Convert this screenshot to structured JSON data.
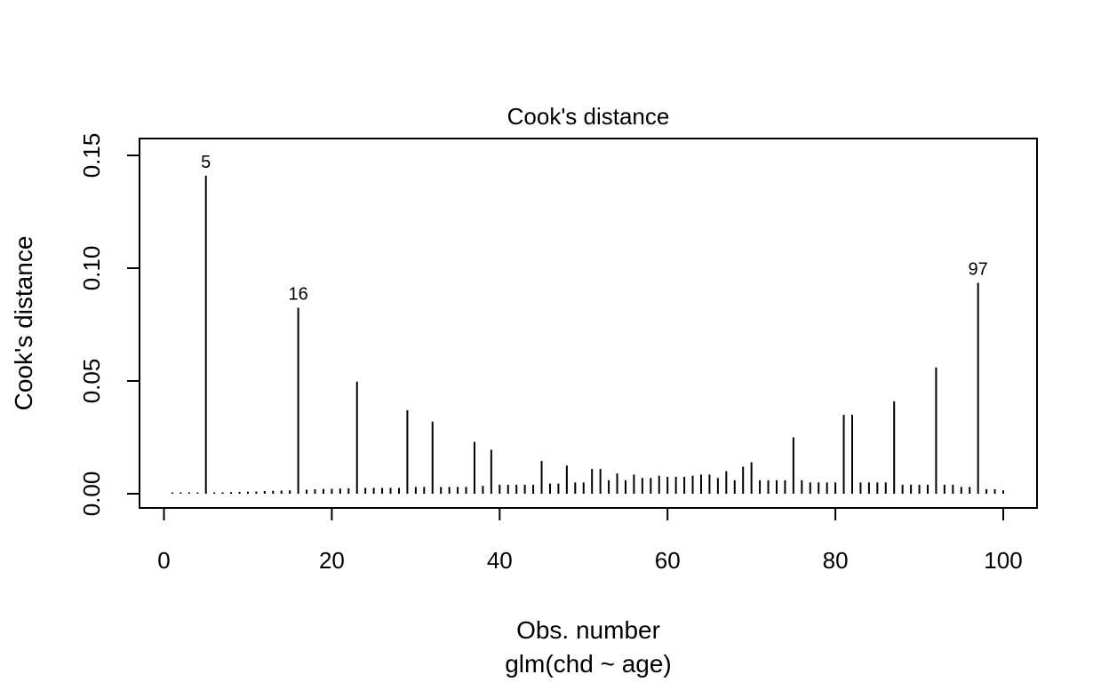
{
  "chart_data": {
    "type": "bar",
    "title": "Cook's distance",
    "xlabel": "Obs. number",
    "xlabel_sub": "glm(chd ~ age)",
    "ylabel": "Cook's distance",
    "xlim": [
      0,
      100
    ],
    "ylim": [
      0,
      0.15
    ],
    "x_ticks": [
      "0",
      "20",
      "40",
      "60",
      "80",
      "100"
    ],
    "x_tick_values": [
      0,
      20,
      40,
      60,
      80,
      100
    ],
    "y_ticks": [
      "0.00",
      "0.05",
      "0.10",
      "0.15"
    ],
    "y_tick_values": [
      0,
      0.05,
      0.1,
      0.15
    ],
    "grid": false,
    "legend": "none",
    "labelled_points": [
      {
        "x": 5,
        "label": "5"
      },
      {
        "x": 16,
        "label": "16"
      },
      {
        "x": 97,
        "label": "97"
      }
    ],
    "x": [
      1,
      2,
      3,
      4,
      5,
      6,
      7,
      8,
      9,
      10,
      11,
      12,
      13,
      14,
      15,
      16,
      17,
      18,
      19,
      20,
      21,
      22,
      23,
      24,
      25,
      26,
      27,
      28,
      29,
      30,
      31,
      32,
      33,
      34,
      35,
      36,
      37,
      38,
      39,
      40,
      41,
      42,
      43,
      44,
      45,
      46,
      47,
      48,
      49,
      50,
      51,
      52,
      53,
      54,
      55,
      56,
      57,
      58,
      59,
      60,
      61,
      62,
      63,
      64,
      65,
      66,
      67,
      68,
      69,
      70,
      71,
      72,
      73,
      74,
      75,
      76,
      77,
      78,
      79,
      80,
      81,
      82,
      83,
      84,
      85,
      86,
      87,
      88,
      89,
      90,
      91,
      92,
      93,
      94,
      95,
      96,
      97,
      98,
      99,
      100
    ],
    "values": [
      0.0004,
      0.0004,
      0.0004,
      0.0004,
      0.141,
      0.0006,
      0.0006,
      0.0007,
      0.0008,
      0.0009,
      0.001,
      0.0012,
      0.0013,
      0.0014,
      0.0015,
      0.0825,
      0.0018,
      0.002,
      0.0021,
      0.0022,
      0.0023,
      0.0024,
      0.0497,
      0.0026,
      0.0026,
      0.0026,
      0.0026,
      0.0026,
      0.037,
      0.003,
      0.003,
      0.032,
      0.003,
      0.003,
      0.003,
      0.003,
      0.023,
      0.0035,
      0.0195,
      0.004,
      0.004,
      0.004,
      0.004,
      0.004,
      0.0145,
      0.0045,
      0.0045,
      0.0125,
      0.005,
      0.005,
      0.011,
      0.011,
      0.006,
      0.009,
      0.006,
      0.0085,
      0.007,
      0.007,
      0.008,
      0.0075,
      0.0075,
      0.0075,
      0.008,
      0.0085,
      0.0085,
      0.007,
      0.01,
      0.006,
      0.012,
      0.014,
      0.006,
      0.006,
      0.006,
      0.006,
      0.025,
      0.006,
      0.005,
      0.005,
      0.005,
      0.005,
      0.035,
      0.035,
      0.005,
      0.005,
      0.005,
      0.005,
      0.041,
      0.004,
      0.004,
      0.004,
      0.004,
      0.056,
      0.004,
      0.004,
      0.003,
      0.003,
      0.0935,
      0.002,
      0.002,
      0.0015
    ]
  }
}
